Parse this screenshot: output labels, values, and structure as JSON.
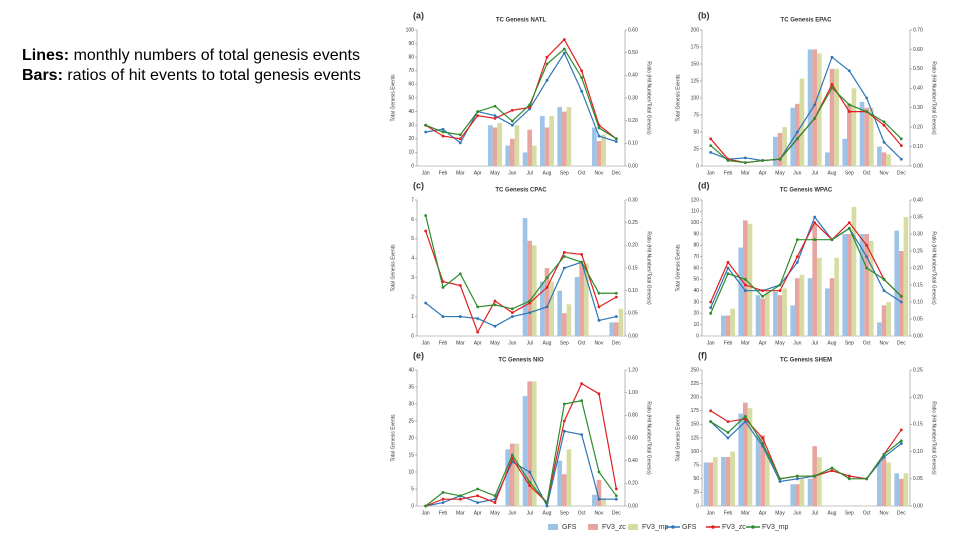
{
  "notes": [
    {
      "label": "Lines:",
      "text": " monthly numbers of total genesis events"
    },
    {
      "label": "Bars:",
      "text": " ratios of hit events to total genesis events"
    }
  ],
  "chart_data": [
    {
      "type": "combo",
      "panel": "(a)",
      "title": "TC Genesis NATL",
      "y_label": "Total Genesis Events",
      "y2_label": "Ratio (Hit Number/Total Genesis)",
      "categories": [
        "Jan",
        "Feb",
        "Mar",
        "Apr",
        "May",
        "Jun",
        "Jul",
        "Aug",
        "Sep",
        "Oct",
        "Nov",
        "Dec"
      ],
      "ylim": [
        0,
        100
      ],
      "yticks": [
        0,
        10,
        20,
        30,
        40,
        50,
        60,
        70,
        80,
        90,
        100
      ],
      "y2lim": [
        0,
        0.6
      ],
      "y2ticks": [
        {
          "value": 0,
          "label": "0.00"
        },
        {
          "value": 0.1,
          "label": "0.10"
        },
        {
          "value": 0.2,
          "label": "0.20"
        },
        {
          "value": 0.3,
          "label": "0.30"
        },
        {
          "value": 0.4,
          "label": "0.40"
        },
        {
          "value": 0.5,
          "label": "0.50"
        },
        {
          "value": 0.6,
          "label": "0.60"
        }
      ],
      "series": [
        {
          "name": "GFS",
          "type": "bar",
          "axis": "y2",
          "color": "#9dc3e6",
          "values": [
            0,
            0,
            0,
            0,
            0.18,
            0.09,
            0.06,
            0.22,
            0.26,
            0,
            0.17,
            0
          ]
        },
        {
          "name": "FV3_zc",
          "type": "bar",
          "axis": "y2",
          "color": "#e6a59e",
          "values": [
            0,
            0,
            0,
            0,
            0.17,
            0.12,
            0.16,
            0.17,
            0.24,
            0,
            0.11,
            0
          ]
        },
        {
          "name": "FV3_mp",
          "type": "bar",
          "axis": "y2",
          "color": "#d6dca4",
          "values": [
            0,
            0,
            0,
            0,
            0.19,
            0.18,
            0.09,
            0.22,
            0.26,
            0,
            0.14,
            0
          ]
        },
        {
          "name": "GFS",
          "type": "line",
          "color": "#2e75b6",
          "values": [
            25,
            27,
            17,
            40,
            37,
            30,
            42,
            63,
            83,
            55,
            22,
            18
          ]
        },
        {
          "name": "FV3_zc",
          "type": "line",
          "color": "#e02020",
          "values": [
            30,
            22,
            20,
            37,
            35,
            41,
            43,
            80,
            93,
            70,
            30,
            20
          ]
        },
        {
          "name": "FV3_mp",
          "type": "line",
          "color": "#2e8b2e",
          "values": [
            30,
            25,
            23,
            40,
            44,
            33,
            45,
            75,
            86,
            65,
            28,
            20
          ]
        }
      ]
    },
    {
      "type": "combo",
      "panel": "(b)",
      "title": "TC Genesis EPAC",
      "y_label": "Total Genesis Events",
      "y2_label": "Ratio (Hit Number/Total Genesis)",
      "categories": [
        "Jan",
        "Feb",
        "Mar",
        "Apr",
        "May",
        "Jun",
        "Jul",
        "Aug",
        "Sep",
        "Oct",
        "Nov",
        "Dec"
      ],
      "ylim": [
        0,
        200
      ],
      "yticks": [
        0,
        25,
        50,
        75,
        100,
        125,
        150,
        175,
        200
      ],
      "y2lim": [
        0,
        0.7
      ],
      "y2ticks": [
        {
          "value": 0,
          "label": "0.00"
        },
        {
          "value": 0.1,
          "label": "0.10"
        },
        {
          "value": 0.2,
          "label": "0.20"
        },
        {
          "value": 0.3,
          "label": "0.30"
        },
        {
          "value": 0.4,
          "label": "0.40"
        },
        {
          "value": 0.5,
          "label": "0.50"
        },
        {
          "value": 0.6,
          "label": "0.60"
        },
        {
          "value": 0.7,
          "label": "0.70"
        }
      ],
      "series": [
        {
          "type": "bar",
          "axis": "y2",
          "color": "#9dc3e6",
          "values": [
            0,
            0,
            0,
            0,
            0.15,
            0.3,
            0.6,
            0.07,
            0.14,
            0.33,
            0.1,
            0
          ]
        },
        {
          "type": "bar",
          "axis": "y2",
          "color": "#e6a59e",
          "values": [
            0,
            0,
            0,
            0,
            0.17,
            0.32,
            0.6,
            0.5,
            0.32,
            0.3,
            0.07,
            0
          ]
        },
        {
          "type": "bar",
          "axis": "y2",
          "color": "#d6dca4",
          "values": [
            0,
            0,
            0,
            0,
            0.2,
            0.45,
            0.58,
            0.5,
            0.4,
            0.3,
            0.06,
            0
          ]
        },
        {
          "type": "line",
          "color": "#2e75b6",
          "values": [
            20,
            10,
            12,
            8,
            10,
            50,
            90,
            160,
            140,
            100,
            35,
            10
          ]
        },
        {
          "type": "line",
          "color": "#e02020",
          "values": [
            40,
            10,
            5,
            8,
            10,
            40,
            70,
            120,
            80,
            80,
            60,
            30
          ]
        },
        {
          "type": "line",
          "color": "#2e8b2e",
          "values": [
            30,
            8,
            5,
            8,
            10,
            40,
            70,
            115,
            90,
            80,
            65,
            40
          ]
        }
      ]
    },
    {
      "type": "combo",
      "panel": "(c)",
      "title": "TC Genesis CPAC",
      "y_label": "Total Genesis Events",
      "y2_label": "Ratio (Hit Number/Total Genesis)",
      "categories": [
        "Jan",
        "Feb",
        "Mar",
        "Apr",
        "May",
        "Jun",
        "Jul",
        "Aug",
        "Sep",
        "Oct",
        "Nov",
        "Dec"
      ],
      "ylim": [
        0,
        7
      ],
      "yticks": [
        0,
        1,
        2,
        3,
        4,
        5,
        6,
        7
      ],
      "y2lim": [
        0,
        0.3
      ],
      "y2ticks": [
        {
          "value": 0,
          "label": "0.00"
        },
        {
          "value": 0.05,
          "label": "0.05"
        },
        {
          "value": 0.1,
          "label": "0.10"
        },
        {
          "value": 0.15,
          "label": "0.15"
        },
        {
          "value": 0.2,
          "label": "0.20"
        },
        {
          "value": 0.25,
          "label": "0.25"
        },
        {
          "value": 0.3,
          "label": "0.30"
        }
      ],
      "series": [
        {
          "type": "bar",
          "axis": "y2",
          "color": "#9dc3e6",
          "values": [
            0,
            0,
            0,
            0,
            0,
            0,
            0.26,
            0.12,
            0.1,
            0.13,
            0,
            0.03
          ]
        },
        {
          "type": "bar",
          "axis": "y2",
          "color": "#e6a59e",
          "values": [
            0,
            0,
            0,
            0,
            0,
            0,
            0.21,
            0.15,
            0.05,
            0.16,
            0,
            0.03
          ]
        },
        {
          "type": "bar",
          "axis": "y2",
          "color": "#d6dca4",
          "values": [
            0,
            0,
            0,
            0,
            0,
            0,
            0.2,
            0.12,
            0.07,
            0.16,
            0,
            0.06
          ]
        },
        {
          "type": "line",
          "color": "#2e75b6",
          "values": [
            1.7,
            1,
            1,
            0.9,
            0.5,
            1,
            1.2,
            1.5,
            3.5,
            3.8,
            0.8,
            1
          ]
        },
        {
          "type": "line",
          "color": "#e02020",
          "values": [
            5.4,
            2.8,
            2.6,
            0.2,
            1.8,
            1.2,
            1.7,
            2.5,
            4.3,
            4.2,
            1.5,
            2
          ]
        },
        {
          "type": "line",
          "color": "#2e8b2e",
          "values": [
            6.2,
            2.5,
            3.2,
            1.5,
            1.6,
            1.4,
            1.8,
            3,
            4.1,
            3.8,
            2.2,
            2.2
          ]
        }
      ]
    },
    {
      "type": "combo",
      "panel": "(d)",
      "title": "TC Genesis WPAC",
      "y_label": "Total Genesis Events",
      "y2_label": "Ratio (Hit Number/Total Genesis)",
      "categories": [
        "Jan",
        "Feb",
        "Mar",
        "Apr",
        "May",
        "Jun",
        "Jul",
        "Aug",
        "Sep",
        "Oct",
        "Nov",
        "Dec"
      ],
      "ylim": [
        0,
        120
      ],
      "yticks": [
        0,
        10,
        20,
        30,
        40,
        50,
        60,
        70,
        80,
        90,
        100,
        110,
        120
      ],
      "y2lim": [
        0,
        0.4
      ],
      "y2ticks": [
        {
          "value": 0,
          "label": "0.00"
        },
        {
          "value": 0.05,
          "label": "0.05"
        },
        {
          "value": 0.1,
          "label": "0.10"
        },
        {
          "value": 0.15,
          "label": "0.15"
        },
        {
          "value": 0.2,
          "label": "0.20"
        },
        {
          "value": 0.25,
          "label": "0.25"
        },
        {
          "value": 0.3,
          "label": "0.30"
        },
        {
          "value": 0.35,
          "label": "0.35"
        },
        {
          "value": 0.4,
          "label": "0.40"
        }
      ],
      "series": [
        {
          "type": "bar",
          "axis": "y2",
          "color": "#9dc3e6",
          "values": [
            0,
            0.06,
            0.26,
            0.12,
            0.13,
            0.09,
            0.17,
            0.14,
            0.3,
            0.3,
            0.04,
            0.31
          ]
        },
        {
          "type": "bar",
          "axis": "y2",
          "color": "#e6a59e",
          "values": [
            0,
            0.06,
            0.34,
            0.11,
            0.12,
            0.17,
            0.33,
            0.17,
            0.3,
            0.3,
            0.09,
            0.25
          ]
        },
        {
          "type": "bar",
          "axis": "y2",
          "color": "#d6dca4",
          "values": [
            0,
            0.08,
            0.33,
            0.13,
            0.14,
            0.18,
            0.23,
            0.23,
            0.38,
            0.28,
            0.1,
            0.35
          ]
        },
        {
          "type": "line",
          "color": "#2e75b6",
          "values": [
            25,
            60,
            40,
            40,
            45,
            65,
            105,
            85,
            95,
            70,
            40,
            30
          ]
        },
        {
          "type": "line",
          "color": "#e02020",
          "values": [
            30,
            65,
            45,
            40,
            40,
            70,
            100,
            85,
            100,
            80,
            50,
            35
          ]
        },
        {
          "type": "line",
          "color": "#2e8b2e",
          "values": [
            20,
            55,
            50,
            35,
            45,
            85,
            85,
            85,
            95,
            60,
            50,
            35
          ]
        }
      ]
    },
    {
      "type": "combo",
      "panel": "(e)",
      "title": "TC Genesis NIO",
      "y_label": "Total Genesis Events",
      "y2_label": "Ratio (Hit Number/Total Genesis)",
      "categories": [
        "Jan",
        "Feb",
        "Mar",
        "Apr",
        "May",
        "Jun",
        "Jul",
        "Aug",
        "Sep",
        "Oct",
        "Nov",
        "Dec"
      ],
      "ylim": [
        0,
        40
      ],
      "yticks": [
        0,
        5,
        10,
        15,
        20,
        25,
        30,
        35,
        40
      ],
      "y2lim": [
        0,
        1.2
      ],
      "y2ticks": [
        {
          "value": 0,
          "label": "0.00"
        },
        {
          "value": 0.2,
          "label": "0.20"
        },
        {
          "value": 0.4,
          "label": "0.40"
        },
        {
          "value": 0.6,
          "label": "0.60"
        },
        {
          "value": 0.8,
          "label": "0.80"
        },
        {
          "value": 1,
          "label": "1.00"
        },
        {
          "value": 1.2,
          "label": "1.20"
        }
      ],
      "series": [
        {
          "type": "bar",
          "axis": "y2",
          "color": "#9dc3e6",
          "values": [
            0,
            0,
            0,
            0,
            0,
            0.5,
            0.97,
            0,
            0.4,
            0,
            0.1,
            0
          ]
        },
        {
          "type": "bar",
          "axis": "y2",
          "color": "#e6a59e",
          "values": [
            0,
            0,
            0,
            0,
            0,
            0.55,
            1.1,
            0,
            0.28,
            0,
            0.23,
            0
          ]
        },
        {
          "type": "bar",
          "axis": "y2",
          "color": "#d6dca4",
          "values": [
            0,
            0,
            0,
            0,
            0,
            0.55,
            1.1,
            0,
            0.5,
            0,
            0.07,
            0
          ]
        },
        {
          "type": "line",
          "color": "#2e75b6",
          "values": [
            0,
            1,
            3,
            1,
            2,
            13,
            10,
            0,
            22,
            21,
            2,
            2
          ]
        },
        {
          "type": "line",
          "color": "#e02020",
          "values": [
            0,
            2,
            2,
            3,
            1,
            14,
            6,
            1,
            25,
            36,
            33,
            5
          ]
        },
        {
          "type": "line",
          "color": "#2e8b2e",
          "values": [
            0,
            4,
            3,
            5,
            3,
            15,
            7,
            1,
            30,
            31,
            10,
            3
          ]
        }
      ]
    },
    {
      "type": "combo",
      "panel": "(f)",
      "title": "TC Genesis SHEM",
      "y_label": "Total Genesis Events",
      "y2_label": "Ratio (Hit Number/Total Genesis)",
      "categories": [
        "Jan",
        "Feb",
        "Mar",
        "Apr",
        "May",
        "Jun",
        "Jul",
        "Aug",
        "Sep",
        "Oct",
        "Nov",
        "Dec"
      ],
      "ylim": [
        0,
        250
      ],
      "yticks": [
        0,
        25,
        50,
        75,
        100,
        125,
        150,
        175,
        200,
        225,
        250
      ],
      "y2lim": [
        0,
        0.25
      ],
      "y2ticks": [
        {
          "value": 0,
          "label": "0.00"
        },
        {
          "value": 0.05,
          "label": "0.05"
        },
        {
          "value": 0.1,
          "label": "0.10"
        },
        {
          "value": 0.15,
          "label": "0.15"
        },
        {
          "value": 0.2,
          "label": "0.20"
        },
        {
          "value": 0.25,
          "label": "0.25"
        }
      ],
      "series": [
        {
          "type": "bar",
          "axis": "y2",
          "color": "#9dc3e6",
          "values": [
            0.08,
            0.09,
            0.17,
            0.13,
            0,
            0.04,
            0.05,
            0,
            0,
            0,
            0.08,
            0.06
          ]
        },
        {
          "type": "bar",
          "axis": "y2",
          "color": "#e6a59e",
          "values": [
            0.08,
            0.09,
            0.19,
            0.13,
            0,
            0.04,
            0.11,
            0,
            0,
            0,
            0.09,
            0.05
          ]
        },
        {
          "type": "bar",
          "axis": "y2",
          "color": "#d6dca4",
          "values": [
            0.09,
            0.1,
            0.18,
            0.1,
            0,
            0.05,
            0.09,
            0,
            0,
            0,
            0.08,
            0.06
          ]
        },
        {
          "type": "line",
          "color": "#2e75b6",
          "values": [
            155,
            125,
            155,
            110,
            45,
            50,
            55,
            65,
            55,
            50,
            90,
            115
          ]
        },
        {
          "type": "line",
          "color": "#e02020",
          "values": [
            175,
            155,
            160,
            125,
            50,
            55,
            55,
            65,
            55,
            50,
            95,
            140
          ]
        },
        {
          "type": "line",
          "color": "#2e8b2e",
          "values": [
            155,
            135,
            165,
            115,
            50,
            55,
            55,
            70,
            50,
            50,
            95,
            120
          ]
        }
      ]
    }
  ]
}
